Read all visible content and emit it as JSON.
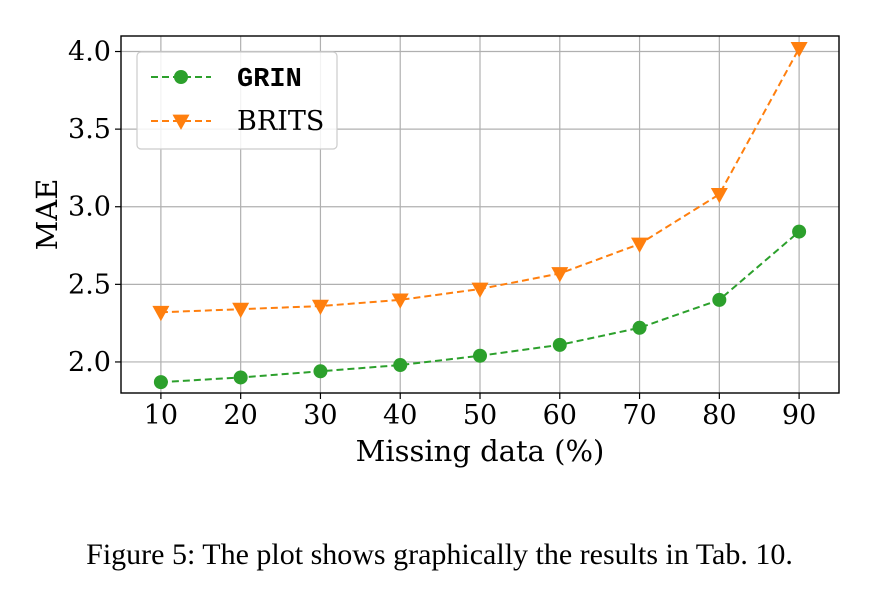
{
  "chart_data": {
    "type": "line",
    "x": [
      10,
      20,
      30,
      40,
      50,
      60,
      70,
      80,
      90
    ],
    "xlabel": "Missing data (%)",
    "ylabel": "MAE",
    "xlim": [
      5,
      95
    ],
    "ylim": [
      1.8,
      4.1
    ],
    "xticks": [
      10,
      20,
      30,
      40,
      50,
      60,
      70,
      80,
      90
    ],
    "yticks": [
      2.0,
      2.5,
      3.0,
      3.5,
      4.0
    ],
    "ytick_labels": [
      "2.0",
      "2.5",
      "3.0",
      "3.5",
      "4.0"
    ],
    "grid": true,
    "legend_position": "top-left",
    "series": [
      {
        "name": "GRIN",
        "values": [
          1.87,
          1.9,
          1.94,
          1.98,
          2.04,
          2.11,
          2.22,
          2.4,
          2.84
        ],
        "color": "#2ca02c",
        "marker": "circle",
        "line_style": "dashed"
      },
      {
        "name": "BRITS",
        "values": [
          2.32,
          2.34,
          2.36,
          2.4,
          2.47,
          2.57,
          2.76,
          3.08,
          4.02
        ],
        "color": "#ff7f0e",
        "marker": "triangle-down",
        "line_style": "dashed"
      }
    ]
  },
  "caption": "Figure 5: The plot shows graphically the results in Tab. 10."
}
